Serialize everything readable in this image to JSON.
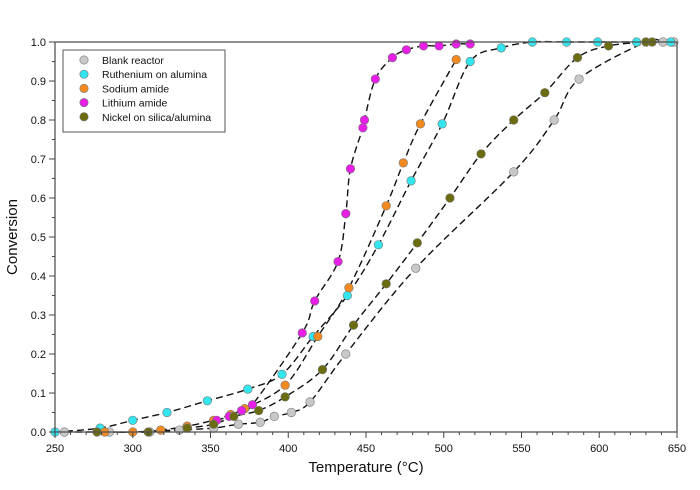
{
  "chart_data": {
    "type": "scatter",
    "title": "",
    "xlabel": "Temperature (°C)",
    "ylabel": "Conversion",
    "xlim": [
      250,
      650
    ],
    "ylim": [
      0,
      1.0
    ],
    "xticks": [
      250,
      300,
      350,
      400,
      450,
      500,
      550,
      600,
      650
    ],
    "yticks": [
      "0.0",
      "0.1",
      "0.2",
      "0.3",
      "0.4",
      "0.5",
      "0.6",
      "0.7",
      "0.8",
      "0.9",
      "1.0"
    ],
    "grid": false,
    "legend_position": "top-left",
    "fit_lines": "dashed black",
    "series": [
      {
        "name": "Blank reactor",
        "color": "#c8c8c8",
        "points": [
          [
            256,
            0
          ],
          [
            285,
            0
          ],
          [
            311,
            0
          ],
          [
            330,
            0.005
          ],
          [
            352,
            0.01
          ],
          [
            368,
            0.02
          ],
          [
            382,
            0.025
          ],
          [
            391,
            0.04
          ],
          [
            402,
            0.05
          ],
          [
            414,
            0.077
          ],
          [
            437,
            0.2
          ],
          [
            482,
            0.42
          ],
          [
            545,
            0.667
          ],
          [
            571,
            0.8
          ],
          [
            587,
            0.905
          ],
          [
            630,
            1.0
          ],
          [
            641,
            1.0
          ],
          [
            648,
            1.0
          ]
        ]
      },
      {
        "name": "Ruthenium on alumina",
        "color": "#33e5ee",
        "points": [
          [
            250,
            0
          ],
          [
            279,
            0.01
          ],
          [
            300,
            0.03
          ],
          [
            322,
            0.05
          ],
          [
            348,
            0.08
          ],
          [
            374,
            0.11
          ],
          [
            396,
            0.148
          ],
          [
            416,
            0.245
          ],
          [
            438,
            0.35
          ],
          [
            458,
            0.48
          ],
          [
            479,
            0.644
          ],
          [
            499,
            0.79
          ],
          [
            517,
            0.95
          ],
          [
            537,
            0.985
          ],
          [
            557,
            1.0
          ],
          [
            579,
            1.0
          ],
          [
            599,
            1.0
          ],
          [
            624,
            1.0
          ],
          [
            646,
            1.0
          ]
        ]
      },
      {
        "name": "Sodium amide",
        "color": "#f28a1f",
        "points": [
          [
            282,
            0
          ],
          [
            300,
            0
          ],
          [
            318,
            0.005
          ],
          [
            335,
            0.015
          ],
          [
            352,
            0.03
          ],
          [
            363,
            0.045
          ],
          [
            372,
            0.06
          ],
          [
            398,
            0.12
          ],
          [
            419,
            0.245
          ],
          [
            439,
            0.37
          ],
          [
            463,
            0.58
          ],
          [
            474,
            0.69
          ],
          [
            485,
            0.79
          ],
          [
            508,
            0.955
          ]
        ]
      },
      {
        "name": "Lithium amide",
        "color": "#e61ee6",
        "points": [
          [
            354,
            0.03
          ],
          [
            362,
            0.04
          ],
          [
            370,
            0.055
          ],
          [
            377,
            0.07
          ],
          [
            409,
            0.254
          ],
          [
            417,
            0.336
          ],
          [
            432,
            0.437
          ],
          [
            437,
            0.56
          ],
          [
            440,
            0.675
          ],
          [
            448,
            0.78
          ],
          [
            449,
            0.8
          ],
          [
            456,
            0.905
          ],
          [
            467,
            0.96
          ],
          [
            476,
            0.98
          ],
          [
            487,
            0.99
          ],
          [
            497,
            0.99
          ],
          [
            508,
            0.995
          ],
          [
            517,
            0.995
          ]
        ]
      },
      {
        "name": "Nickel on silica/alumina",
        "color": "#6b6b10",
        "points": [
          [
            277,
            0
          ],
          [
            310,
            0
          ],
          [
            335,
            0.01
          ],
          [
            352,
            0.02
          ],
          [
            365,
            0.04
          ],
          [
            381,
            0.055
          ],
          [
            398,
            0.09
          ],
          [
            422,
            0.16
          ],
          [
            442,
            0.274
          ],
          [
            463,
            0.38
          ],
          [
            483,
            0.485
          ],
          [
            504,
            0.6
          ],
          [
            524,
            0.713
          ],
          [
            545,
            0.8
          ],
          [
            565,
            0.87
          ],
          [
            586,
            0.96
          ],
          [
            606,
            0.99
          ],
          [
            630,
            1.0
          ],
          [
            634,
            1.0
          ]
        ]
      }
    ]
  }
}
